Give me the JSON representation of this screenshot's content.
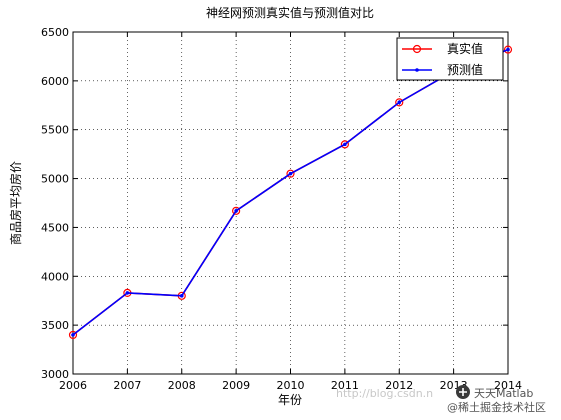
{
  "chart_data": {
    "type": "line",
    "title": "神经网预测真实值与预测值对比",
    "xlabel": "年份",
    "ylabel": "商品房平均房价",
    "x": [
      2006,
      2007,
      2008,
      2009,
      2010,
      2011,
      2012,
      2013,
      2014
    ],
    "xlim": [
      2006,
      2014
    ],
    "ylim": [
      3000,
      6500
    ],
    "xticks": [
      "2006",
      "2007",
      "2008",
      "2009",
      "2010",
      "2011",
      "2012",
      "2013",
      "2014"
    ],
    "yticks": [
      "3000",
      "3500",
      "4000",
      "4500",
      "5000",
      "5500",
      "6000",
      "6500"
    ],
    "grid": true,
    "legend_position": "top-right",
    "series": [
      {
        "name": "真实值",
        "color": "#ff0000",
        "marker": "circle",
        "values": [
          3400,
          3830,
          3800,
          4670,
          5050,
          5350,
          5780,
          6100,
          6320
        ]
      },
      {
        "name": "预测值",
        "color": "#0000ff",
        "marker": "dot",
        "values": [
          3400,
          3830,
          3800,
          4670,
          5050,
          5350,
          5780,
          6100,
          6320
        ]
      }
    ]
  },
  "watermark": {
    "url_text": "http://blog.csdn.n",
    "brand": "天天Matlab",
    "community": "@稀土掘金技术社区"
  }
}
